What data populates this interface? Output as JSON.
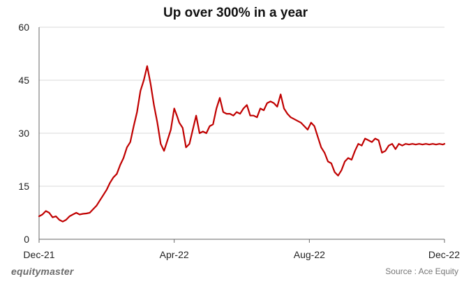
{
  "chart_data": {
    "type": "line",
    "title": "Up over 300% in a year",
    "xlabel": "",
    "ylabel": "",
    "ylim": [
      0,
      60
    ],
    "yticks": [
      "0",
      "15",
      "30",
      "45",
      "60"
    ],
    "xticks": [
      "Dec-21",
      "Apr-22",
      "Aug-22",
      "Dec-22"
    ],
    "grid": "horizontal",
    "line_color": "#c00000",
    "x_range": [
      0,
      12
    ],
    "series": [
      {
        "x": [
          0,
          0.1,
          0.2,
          0.3,
          0.4,
          0.5,
          0.6,
          0.7,
          0.8,
          0.9,
          1.0,
          1.1,
          1.2,
          1.3,
          1.4,
          1.5,
          1.6,
          1.7,
          1.8,
          1.9,
          2.0,
          2.1,
          2.2,
          2.3,
          2.4,
          2.5,
          2.6,
          2.7,
          2.8,
          2.9,
          3.0,
          3.1,
          3.2,
          3.3,
          3.4,
          3.5,
          3.6,
          3.7,
          3.8,
          3.9,
          4.0,
          4.08,
          4.15,
          4.25,
          4.35,
          4.45,
          4.55,
          4.65,
          4.75,
          4.85,
          4.95,
          5.05,
          5.15,
          5.25,
          5.35,
          5.45,
          5.55,
          5.65,
          5.75,
          5.85,
          5.95,
          6.05,
          6.15,
          6.25,
          6.35,
          6.45,
          6.55,
          6.65,
          6.75,
          6.85,
          6.95,
          7.05,
          7.15,
          7.25,
          7.35,
          7.45,
          7.55,
          7.65,
          7.75,
          7.85,
          7.95,
          8.05,
          8.15,
          8.25,
          8.35,
          8.45,
          8.55,
          8.65,
          8.75,
          8.85,
          8.95,
          9.05,
          9.15,
          9.25,
          9.35,
          9.45,
          9.55,
          9.65,
          9.75,
          9.85,
          9.95,
          10.05,
          10.15,
          10.25,
          10.35,
          10.45,
          10.55,
          10.65,
          10.75,
          10.85,
          10.95,
          11.05,
          11.15,
          11.25,
          11.35,
          11.45,
          11.55,
          11.65,
          11.75,
          11.85,
          11.95,
          12.0
        ],
        "y": [
          6.5,
          7.0,
          8.0,
          7.5,
          6.2,
          6.5,
          5.5,
          5.0,
          5.5,
          6.5,
          7.0,
          7.5,
          7.0,
          7.2,
          7.3,
          7.5,
          8.5,
          9.5,
          11.0,
          12.5,
          14.0,
          16.0,
          17.5,
          18.5,
          21.0,
          23.0,
          26.0,
          27.5,
          32.0,
          36.0,
          42.0,
          45.0,
          49.0,
          44.0,
          38.0,
          33.0,
          27.0,
          25.0,
          28.0,
          31.0,
          37.0,
          35.0,
          33.0,
          31.5,
          26.0,
          27.0,
          31.0,
          35.0,
          30.0,
          30.5,
          30.0,
          32.0,
          32.5,
          37.0,
          40.0,
          36.0,
          35.5,
          35.5,
          35.0,
          36.0,
          35.5,
          37.0,
          38.0,
          35.0,
          35.0,
          34.5,
          37.0,
          36.5,
          38.5,
          39.0,
          38.5,
          37.5,
          41.0,
          37.0,
          35.5,
          34.5,
          34.0,
          33.5,
          33.0,
          32.0,
          31.0,
          33.0,
          32.0,
          29.0,
          26.0,
          24.5,
          22.0,
          21.5,
          19.0,
          18.0,
          19.5,
          22.0,
          23.0,
          22.5,
          25.0,
          27.0,
          26.5,
          28.5,
          28.0,
          27.5,
          28.5,
          28.0,
          24.5,
          25.0,
          26.5,
          27.0,
          25.5,
          27.0,
          26.5,
          27.0,
          26.8,
          27.0,
          26.8,
          27.0,
          26.8,
          27.0,
          26.8,
          27.0,
          26.8,
          27.0,
          26.8,
          27.0
        ]
      }
    ]
  },
  "footer": {
    "brand": "equitymaster",
    "source": "Source : Ace Equity"
  }
}
